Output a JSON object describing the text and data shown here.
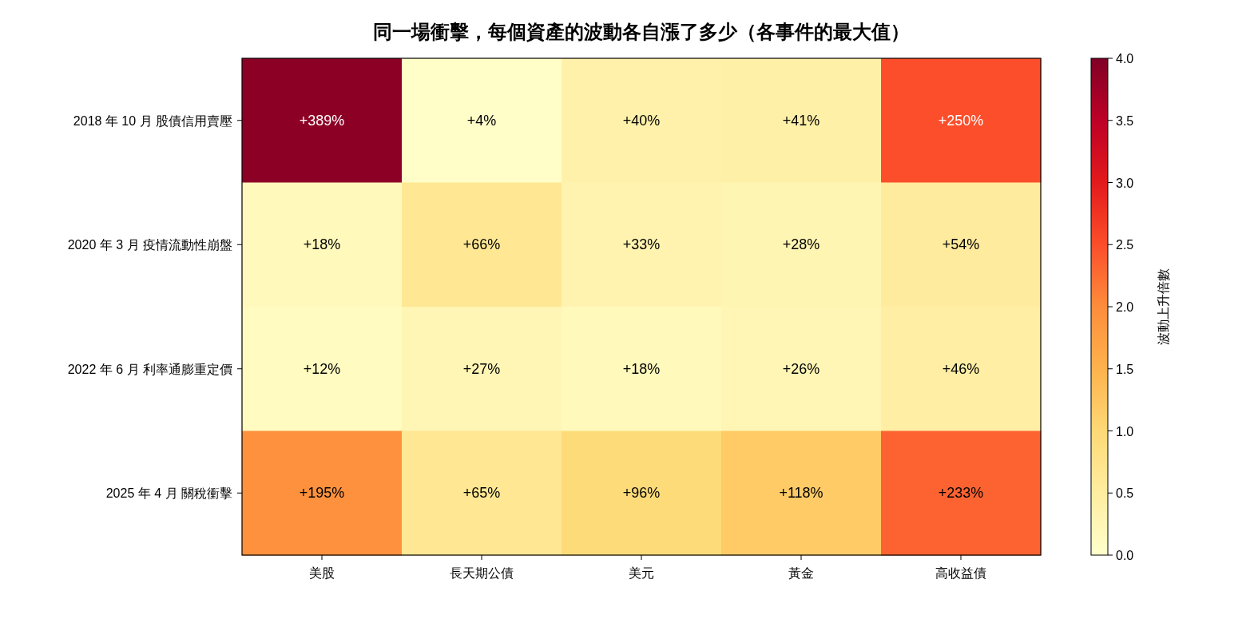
{
  "chart_data": {
    "type": "heatmap",
    "title": "同一場衝擊，每個資產的波動各自漲了多少（各事件的最大值）",
    "categories": [
      "美股",
      "長天期公債",
      "美元",
      "黃金",
      "高收益債"
    ],
    "y_categories": [
      "2018 年 10 月 股債信用賣壓",
      "2020 年 3 月 疫情流動性崩盤",
      "2022 年 6 月 利率通膨重定價",
      "2025 年 4 月 關稅衝擊"
    ],
    "cells": [
      [
        3.89,
        0.04,
        0.4,
        0.41,
        2.5
      ],
      [
        0.18,
        0.66,
        0.33,
        0.28,
        0.54
      ],
      [
        0.12,
        0.27,
        0.18,
        0.26,
        0.46
      ],
      [
        1.95,
        0.65,
        0.96,
        1.18,
        2.33
      ]
    ],
    "cell_labels": [
      [
        "+389%",
        "+4%",
        "+40%",
        "+41%",
        "+250%"
      ],
      [
        "+18%",
        "+66%",
        "+33%",
        "+28%",
        "+54%"
      ],
      [
        "+12%",
        "+27%",
        "+18%",
        "+26%",
        "+46%"
      ],
      [
        "+195%",
        "+65%",
        "+96%",
        "+118%",
        "+233%"
      ]
    ],
    "clim": [
      0,
      4
    ],
    "cticks": [
      {
        "value": 0,
        "label": "0.0"
      },
      {
        "value": 0.5,
        "label": "0.5"
      },
      {
        "value": 1,
        "label": "1.0"
      },
      {
        "value": 1.5,
        "label": "1.5"
      },
      {
        "value": 2,
        "label": "2.0"
      },
      {
        "value": 2.5,
        "label": "2.5"
      },
      {
        "value": 3,
        "label": "3.0"
      },
      {
        "value": 3.5,
        "label": "3.5"
      },
      {
        "value": 4,
        "label": "4.0"
      }
    ],
    "clabel": "波動上升倍數"
  }
}
